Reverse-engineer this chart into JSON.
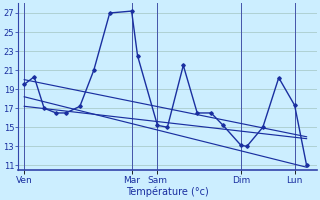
{
  "xlabel": "Température (°c)",
  "bg_color": "#cceeff",
  "grid_color": "#aacccc",
  "line_color": "#1a2fa0",
  "ylim": [
    10.5,
    28
  ],
  "yticks": [
    11,
    13,
    15,
    17,
    19,
    21,
    23,
    25,
    27
  ],
  "day_labels": [
    "Ven",
    "Mar",
    "Sam",
    "Dim",
    "Lun"
  ],
  "day_x": [
    0,
    54,
    67,
    109,
    136
  ],
  "vline_x": [
    0,
    54,
    67,
    109,
    136
  ],
  "main_x": [
    0,
    5,
    10,
    16,
    21,
    28,
    35,
    43,
    54,
    57,
    67,
    72,
    80,
    87,
    94,
    100,
    109,
    112,
    120,
    128,
    136,
    142
  ],
  "main_y": [
    19.5,
    20.3,
    17.0,
    16.5,
    16.5,
    17.2,
    21.0,
    27.0,
    27.2,
    22.5,
    15.2,
    15.0,
    21.5,
    16.5,
    16.5,
    15.2,
    13.1,
    13.0,
    15.0,
    20.2,
    17.3,
    11.0
  ],
  "trend1_x": [
    0,
    142
  ],
  "trend1_y": [
    20.0,
    14.0
  ],
  "trend2_x": [
    0,
    142
  ],
  "trend2_y": [
    18.2,
    10.8
  ],
  "trend3_x": [
    0,
    142
  ],
  "trend3_y": [
    17.2,
    13.8
  ],
  "xlim": [
    -3,
    147
  ],
  "xlabel_fontsize": 7,
  "ytick_fontsize": 6,
  "xtick_fontsize": 6.5
}
